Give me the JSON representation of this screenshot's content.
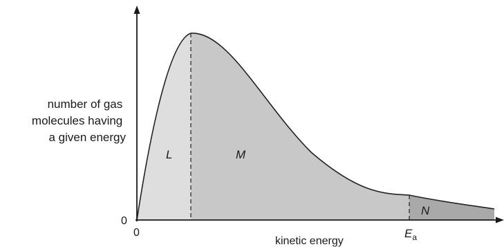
{
  "y_axis_label": [
    "number of gas",
    "molecules having",
    "a given energy"
  ],
  "x_axis_label": "kinetic energy",
  "origin_x_label": "0",
  "origin_y_label": "0",
  "activation_energy_label": {
    "symbol": "E",
    "subscript": "a"
  },
  "regions": {
    "left": "L",
    "middle": "M",
    "right": "N"
  },
  "colors": {
    "axis": "#1a1a1a",
    "region_L_fill": "#dedede",
    "region_M_fill": "#c8c8c8",
    "region_N_fill": "#a9a9a9",
    "curve": "#222222"
  }
}
